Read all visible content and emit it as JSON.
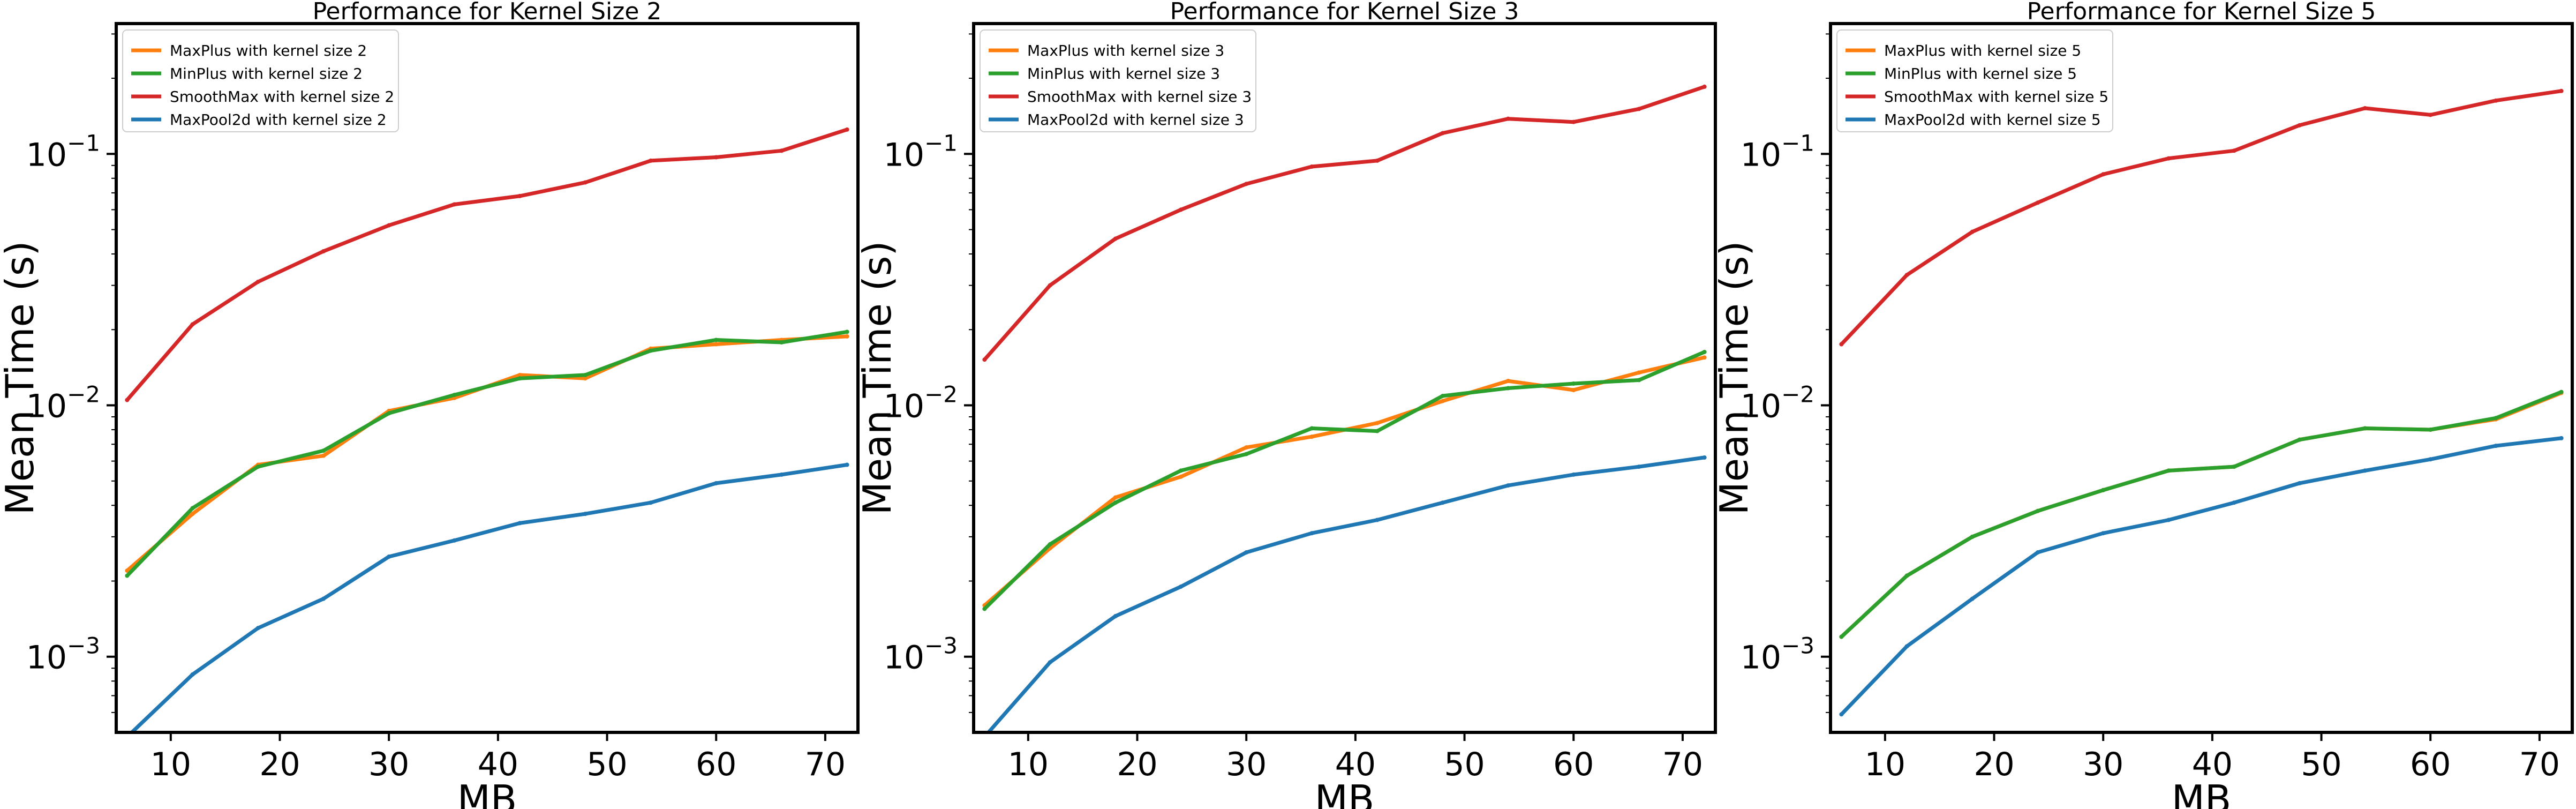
{
  "figure": {
    "colors": {
      "MaxPlus": "#ff7f0e",
      "MinPlus": "#2ca02c",
      "SmoothMax": "#d62728",
      "MaxPool2d": "#1f77b4"
    }
  },
  "chart_data": [
    {
      "type": "line",
      "title": "Performance for Kernel Size 2",
      "xlabel": "MB",
      "ylabel": "Mean Time (s)",
      "yscale": "log",
      "xlim": [
        5,
        73
      ],
      "ylim": [
        0.0005,
        0.33
      ],
      "xticks": [
        "10",
        "20",
        "30",
        "40",
        "50",
        "60",
        "70"
      ],
      "yticks": [
        {
          "value": 0.001,
          "base": "10",
          "exp": "−3"
        },
        {
          "value": 0.01,
          "base": "10",
          "exp": "−2"
        },
        {
          "value": 0.1,
          "base": "10",
          "exp": "−1"
        }
      ],
      "legend_position": "upper-left",
      "x": [
        6,
        12,
        18,
        24,
        30,
        36,
        42,
        48,
        54,
        60,
        66,
        72
      ],
      "series": [
        {
          "name": "MaxPlus with kernel size 2",
          "key": "MaxPlus",
          "values": [
            0.0022,
            0.0037,
            0.0058,
            0.0063,
            0.0095,
            0.0107,
            0.0132,
            0.0128,
            0.0168,
            0.0175,
            0.0182,
            0.0188
          ]
        },
        {
          "name": "MinPlus with kernel size 2",
          "key": "MinPlus",
          "values": [
            0.0021,
            0.0039,
            0.0057,
            0.0066,
            0.0093,
            0.011,
            0.0128,
            0.0132,
            0.0165,
            0.0182,
            0.0178,
            0.0196
          ]
        },
        {
          "name": "SmoothMax with kernel size 2",
          "key": "SmoothMax",
          "values": [
            0.0105,
            0.021,
            0.031,
            0.041,
            0.052,
            0.063,
            0.068,
            0.077,
            0.094,
            0.097,
            0.103,
            0.125
          ]
        },
        {
          "name": "MaxPool2d with kernel size 2",
          "key": "MaxPool2d",
          "values": [
            0.00048,
            0.00085,
            0.0013,
            0.0017,
            0.0025,
            0.0029,
            0.0034,
            0.0037,
            0.0041,
            0.0049,
            0.0053,
            0.0058
          ]
        }
      ]
    },
    {
      "type": "line",
      "title": "Performance for Kernel Size 3",
      "xlabel": "MB",
      "ylabel": "Mean Time (s)",
      "yscale": "log",
      "xlim": [
        5,
        73
      ],
      "ylim": [
        0.0005,
        0.33
      ],
      "xticks": [
        "10",
        "20",
        "30",
        "40",
        "50",
        "60",
        "70"
      ],
      "yticks": [
        {
          "value": 0.001,
          "base": "10",
          "exp": "−3"
        },
        {
          "value": 0.01,
          "base": "10",
          "exp": "−2"
        },
        {
          "value": 0.1,
          "base": "10",
          "exp": "−1"
        }
      ],
      "legend_position": "upper-left",
      "x": [
        6,
        12,
        18,
        24,
        30,
        36,
        42,
        48,
        54,
        60,
        66,
        72
      ],
      "series": [
        {
          "name": "MaxPlus with kernel size 3",
          "key": "MaxPlus",
          "values": [
            0.0016,
            0.0027,
            0.0043,
            0.0052,
            0.0068,
            0.0075,
            0.0085,
            0.0104,
            0.0125,
            0.0115,
            0.0135,
            0.0155
          ]
        },
        {
          "name": "MinPlus with kernel size 3",
          "key": "MinPlus",
          "values": [
            0.00155,
            0.0028,
            0.0041,
            0.0055,
            0.0064,
            0.0081,
            0.0079,
            0.0109,
            0.0117,
            0.0122,
            0.0126,
            0.0163
          ]
        },
        {
          "name": "SmoothMax with kernel size 3",
          "key": "SmoothMax",
          "values": [
            0.0152,
            0.03,
            0.046,
            0.06,
            0.076,
            0.089,
            0.094,
            0.121,
            0.138,
            0.134,
            0.151,
            0.185
          ]
        },
        {
          "name": "MaxPool2d with kernel size 3",
          "key": "MaxPool2d",
          "values": [
            0.00048,
            0.00095,
            0.00145,
            0.0019,
            0.0026,
            0.0031,
            0.0035,
            0.0041,
            0.0048,
            0.0053,
            0.0057,
            0.0062
          ]
        }
      ]
    },
    {
      "type": "line",
      "title": "Performance for Kernel Size 5",
      "xlabel": "MB",
      "ylabel": "Mean Time (s)",
      "yscale": "log",
      "xlim": [
        5,
        73
      ],
      "ylim": [
        0.0005,
        0.33
      ],
      "xticks": [
        "10",
        "20",
        "30",
        "40",
        "50",
        "60",
        "70"
      ],
      "yticks": [
        {
          "value": 0.001,
          "base": "10",
          "exp": "−3"
        },
        {
          "value": 0.01,
          "base": "10",
          "exp": "−2"
        },
        {
          "value": 0.1,
          "base": "10",
          "exp": "−1"
        }
      ],
      "legend_position": "upper-left",
      "x": [
        6,
        12,
        18,
        24,
        30,
        36,
        42,
        48,
        54,
        60,
        66,
        72
      ],
      "series": [
        {
          "name": "MaxPlus with kernel size 5",
          "key": "MaxPlus",
          "values": [
            0.0012,
            0.0021,
            0.003,
            0.0038,
            0.0046,
            0.0055,
            0.0057,
            0.0073,
            0.0081,
            0.008,
            0.0088,
            0.0112
          ]
        },
        {
          "name": "MinPlus with kernel size 5",
          "key": "MinPlus",
          "values": [
            0.0012,
            0.0021,
            0.003,
            0.0038,
            0.0046,
            0.0055,
            0.0057,
            0.0073,
            0.0081,
            0.008,
            0.0089,
            0.0113
          ]
        },
        {
          "name": "SmoothMax with kernel size 5",
          "key": "SmoothMax",
          "values": [
            0.0175,
            0.033,
            0.049,
            0.064,
            0.083,
            0.096,
            0.103,
            0.13,
            0.152,
            0.143,
            0.163,
            0.178
          ]
        },
        {
          "name": "MaxPool2d with kernel size 5",
          "key": "MaxPool2d",
          "values": [
            0.00059,
            0.0011,
            0.0017,
            0.0026,
            0.0031,
            0.0035,
            0.0041,
            0.0049,
            0.0055,
            0.0061,
            0.0069,
            0.0074
          ]
        }
      ]
    }
  ]
}
